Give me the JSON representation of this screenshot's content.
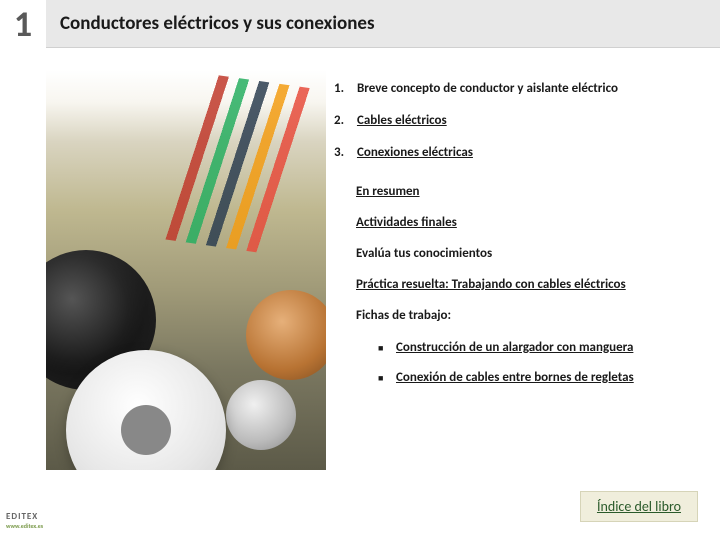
{
  "header": {
    "chapter_number": "1",
    "title": "Conductores eléctricos y sus conexiones"
  },
  "numbered": [
    {
      "n": "1.",
      "text": "Breve concepto de conductor y aislante eléctrico",
      "underline": false
    },
    {
      "n": "2.",
      "text": "Cables eléctricos",
      "underline": true
    },
    {
      "n": "3.",
      "text": "Conexiones eléctricas",
      "underline": true
    }
  ],
  "sections": [
    {
      "text": "En resumen",
      "underline": true
    },
    {
      "text": "Actividades finales",
      "underline": true
    },
    {
      "text": "Evalúa tus conocimientos",
      "underline": false
    },
    {
      "text": "Práctica resuelta: Trabajando con cables eléctricos",
      "underline": true
    },
    {
      "text": "Fichas de trabajo:",
      "underline": false
    }
  ],
  "fichas": [
    "Construcción de un alargador con manguera",
    "Conexión de cables entre bornes de regletas"
  ],
  "footer_link": "Índice del libro",
  "logo": {
    "brand": "EDITEX",
    "url": "www.editex.es"
  },
  "colors": {
    "header_bg": "#e8e8e8",
    "text": "#1a1a1a",
    "footer_bg": "#f0eedc",
    "footer_text": "#2a5a2a"
  }
}
